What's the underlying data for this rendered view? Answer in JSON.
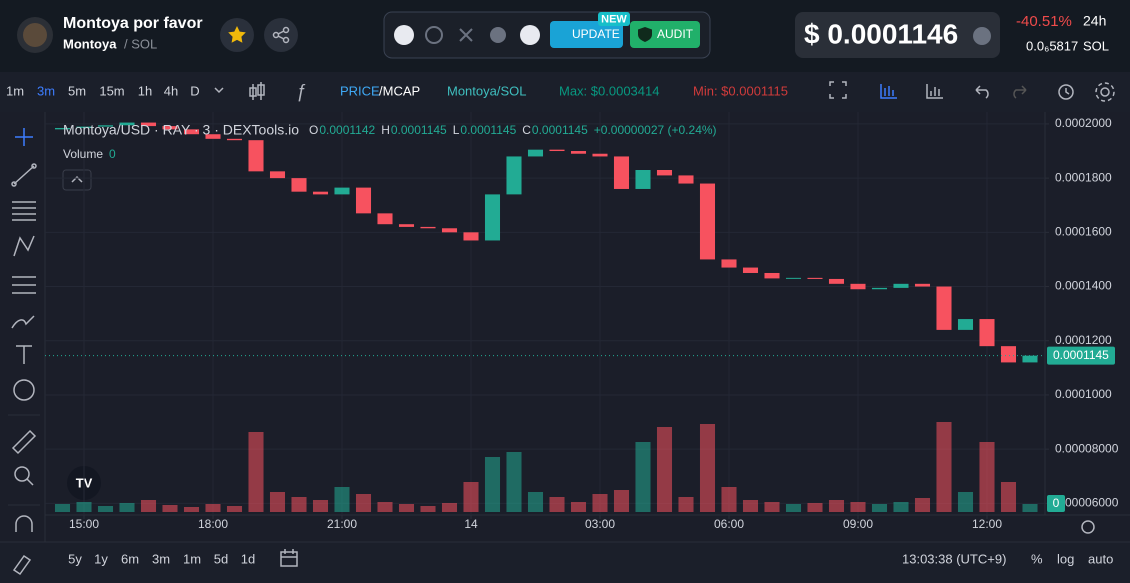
{
  "header": {
    "token_name": "Montoya por favor",
    "symbol": "Montoya",
    "pair": "/ SOL",
    "badge_new": "NEW",
    "update": "UPDATE",
    "audit": "AUDIT",
    "price": "$ 0.0001146",
    "change": "-40.51%",
    "period": "24h",
    "price_sol": "0.0₆5817",
    "sol": "SOL"
  },
  "toolbar": {
    "intervals": [
      "1m",
      "3m",
      "5m",
      "15m",
      "1h",
      "4h",
      "D"
    ],
    "price": "PRICE",
    "mcap": "/MCAP",
    "pair": "Montoya/SOL",
    "max": "Max: $0.0003414",
    "min": "Min: $0.0001115"
  },
  "chart_data": {
    "type": "candlestick",
    "legend_title": "Montoya/USD · RAY · 3 · DEXTools.io",
    "ohlc": [
      {
        "key": "O",
        "value": "0.0001142"
      },
      {
        "key": "H",
        "value": "0.0001145"
      },
      {
        "key": "L",
        "value": "0.0001145"
      },
      {
        "key": "C",
        "value": "0.0001145"
      }
    ],
    "change": "+0.00000027 (+0.24%)",
    "volume_label": "Volume",
    "volume_value": "0",
    "x": [
      -0.5,
      0,
      0.5,
      1,
      1.5,
      2,
      2.5,
      3,
      3.5,
      4,
      4.5,
      5,
      5.5,
      6,
      6.5,
      7,
      7.5,
      8,
      8.5,
      9,
      9.5,
      10,
      10.5,
      11,
      11.5,
      12,
      12.5,
      13,
      13.5,
      14,
      14.5,
      15,
      15.5,
      16,
      16.5,
      17,
      17.5,
      18,
      18.5,
      19,
      19.5,
      20,
      20.5,
      21,
      21.5,
      22
    ],
    "open": [
      0.000198,
      0.0001985,
      0.000199,
      0.0001995,
      0.0002005,
      0.0001992,
      0.000198,
      0.0001962,
      0.0001945,
      0.000194,
      0.0001825,
      0.00018,
      0.000175,
      0.000174,
      0.0001765,
      0.000167,
      0.000163,
      0.000162,
      0.0001615,
      0.00016,
      0.000157,
      0.000174,
      0.000188,
      0.0001905,
      0.00019,
      0.000189,
      0.000188,
      0.000176,
      0.000183,
      0.000181,
      0.000178,
      0.00015,
      0.000147,
      0.000145,
      0.000143,
      0.0001432,
      0.0001428,
      0.000141,
      0.000139,
      0.0001395,
      0.000141,
      0.00014,
      0.000124,
      0.000128,
      0.000118,
      0.000112
    ],
    "close": [
      0.0001985,
      0.000199,
      0.0001995,
      0.0002005,
      0.0001992,
      0.000198,
      0.0001962,
      0.0001945,
      0.000194,
      0.0001825,
      0.00018,
      0.000175,
      0.000174,
      0.0001765,
      0.000167,
      0.000163,
      0.000162,
      0.0001615,
      0.00016,
      0.000157,
      0.000174,
      0.000188,
      0.0001905,
      0.00019,
      0.000189,
      0.000188,
      0.000176,
      0.000183,
      0.000181,
      0.000178,
      0.00015,
      0.000147,
      0.000145,
      0.000143,
      0.0001432,
      0.0001428,
      0.000141,
      0.000139,
      0.0001395,
      0.000141,
      0.00014,
      0.000124,
      0.000128,
      0.000118,
      0.000112,
      0.0001145
    ],
    "volume": [
      8,
      10,
      6,
      9,
      12,
      7,
      5,
      8,
      6,
      80,
      20,
      15,
      12,
      25,
      18,
      10,
      8,
      6,
      9,
      30,
      55,
      60,
      20,
      15,
      10,
      18,
      22,
      70,
      85,
      15,
      88,
      25,
      12,
      10,
      8,
      9,
      12,
      10,
      8,
      10,
      14,
      90,
      20,
      70,
      30,
      8
    ],
    "volume_ylim": [
      0,
      100
    ],
    "colors": {
      "up": "#22ab94",
      "down": "#f7525f"
    },
    "xlim": [
      -0.907,
      22.349
    ],
    "xticks": [
      {
        "value": 0,
        "label": "15:00"
      },
      {
        "value": 3,
        "label": "18:00"
      },
      {
        "value": 6,
        "label": "21:00"
      },
      {
        "value": 9,
        "label": "14"
      },
      {
        "value": 12,
        "label": "03:00"
      },
      {
        "value": 15,
        "label": "06:00"
      },
      {
        "value": 18,
        "label": "09:00"
      },
      {
        "value": 21,
        "label": "12:00"
      }
    ],
    "ylim": [
      5.57e-05,
      0.0002044
    ],
    "yticks": [
      {
        "value": 6e-05,
        "label": "0.00006000"
      },
      {
        "value": 8e-05,
        "label": "0.00008000"
      },
      {
        "value": 0.0001,
        "label": "0.0001000"
      },
      {
        "value": 0.00012,
        "label": "0.0001200"
      },
      {
        "value": 0.00014,
        "label": "0.0001400"
      },
      {
        "value": 0.00016,
        "label": "0.0001600"
      },
      {
        "value": 0.00018,
        "label": "0.0001800"
      },
      {
        "value": 0.0002,
        "label": "0.0002000"
      }
    ],
    "last_price": {
      "value": 0.0001145,
      "label": "0.0001145"
    },
    "grid": true
  },
  "footer": {
    "ranges": [
      "5y",
      "1y",
      "6m",
      "3m",
      "1m",
      "5d",
      "1d"
    ],
    "time": "13:03:38 (UTC+9)",
    "percent": "%",
    "log": "log",
    "auto": "auto"
  }
}
